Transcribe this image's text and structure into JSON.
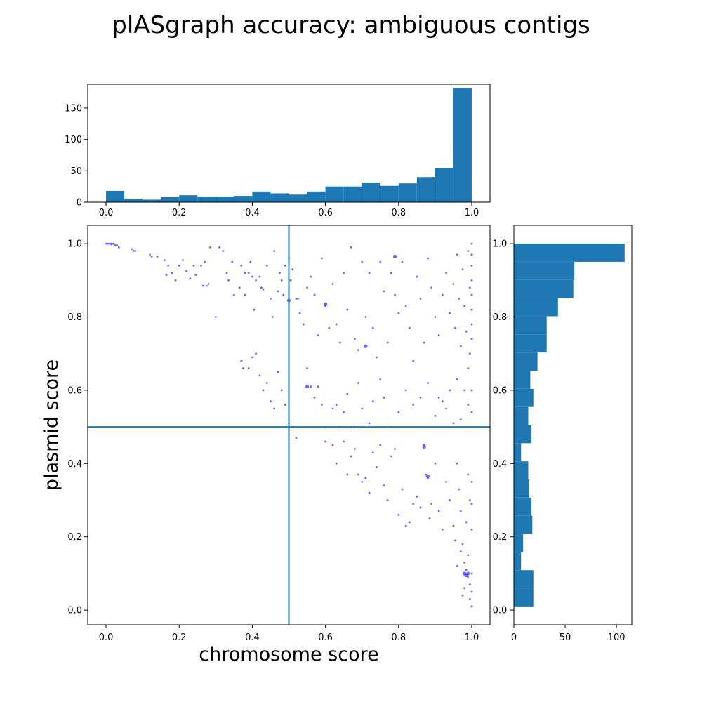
{
  "title": "plASgraph accuracy: ambiguous contigs",
  "chart_data": [
    {
      "type": "bar",
      "role": "histogram of chromosome score",
      "xlim": [
        -0.05,
        1.05
      ],
      "ylim": [
        0,
        188
      ],
      "x_ticks": [
        0.0,
        0.2,
        0.4,
        0.6,
        0.8,
        1.0
      ],
      "x_tick_labels": [
        "0.0",
        "0.2",
        "0.4",
        "0.6",
        "0.8",
        "1.0"
      ],
      "y_ticks": [
        0,
        50,
        100,
        150
      ],
      "y_tick_labels": [
        "0",
        "50",
        "100",
        "150"
      ],
      "bin_edges": [
        0.0,
        0.05,
        0.1,
        0.15,
        0.2,
        0.25,
        0.3,
        0.35,
        0.4,
        0.45,
        0.5,
        0.55,
        0.6,
        0.65,
        0.7,
        0.75,
        0.8,
        0.85,
        0.9,
        0.95,
        1.0
      ],
      "values": [
        18,
        5,
        4,
        8,
        11,
        9,
        9,
        10,
        17,
        14,
        12,
        17,
        25,
        25,
        31,
        26,
        30,
        40,
        54,
        182
      ],
      "color": "#1f77b4"
    },
    {
      "type": "scatter",
      "xlabel": "chromosome score",
      "ylabel": "plasmid score",
      "xlim": [
        -0.05,
        1.05
      ],
      "ylim": [
        -0.04,
        1.05
      ],
      "x_ticks": [
        0.0,
        0.2,
        0.4,
        0.6,
        0.8,
        1.0
      ],
      "x_tick_labels": [
        "0.0",
        "0.2",
        "0.4",
        "0.6",
        "0.8",
        "1.0"
      ],
      "y_ticks": [
        0.0,
        0.2,
        0.4,
        0.6,
        0.8,
        1.0
      ],
      "y_tick_labels": [
        "0.0",
        "0.2",
        "0.4",
        "0.6",
        "0.8",
        "1.0"
      ],
      "reference_lines": {
        "x": 0.5,
        "y": 0.5,
        "color": "#1f77b4"
      },
      "point_color": "#0000ff",
      "points": [
        [
          0.0,
          1.0
        ],
        [
          0.005,
          1.0
        ],
        [
          0.01,
          1.0
        ],
        [
          0.015,
          0.998
        ],
        [
          0.02,
          1.0
        ],
        [
          0.025,
          0.996
        ],
        [
          0.015,
          1.0
        ],
        [
          0.03,
          0.995
        ],
        [
          0.035,
          0.99
        ],
        [
          0.07,
          0.985
        ],
        [
          0.075,
          0.98
        ],
        [
          0.08,
          0.98
        ],
        [
          0.12,
          0.97
        ],
        [
          0.125,
          0.965
        ],
        [
          0.14,
          0.965
        ],
        [
          0.16,
          0.955
        ],
        [
          0.17,
          0.94
        ],
        [
          0.165,
          0.915
        ],
        [
          0.18,
          0.92
        ],
        [
          0.19,
          0.9
        ],
        [
          0.2,
          0.94
        ],
        [
          0.21,
          0.955
        ],
        [
          0.22,
          0.925
        ],
        [
          0.23,
          0.905
        ],
        [
          0.24,
          0.94
        ],
        [
          0.245,
          0.915
        ],
        [
          0.26,
          0.94
        ],
        [
          0.265,
          0.885
        ],
        [
          0.27,
          0.95
        ],
        [
          0.275,
          0.885
        ],
        [
          0.28,
          0.89
        ],
        [
          0.285,
          0.99
        ],
        [
          0.3,
          0.8
        ],
        [
          0.31,
          0.99
        ],
        [
          0.32,
          0.98
        ],
        [
          0.33,
          0.92
        ],
        [
          0.335,
          0.9
        ],
        [
          0.345,
          0.95
        ],
        [
          0.35,
          0.86
        ],
        [
          0.365,
          0.88
        ],
        [
          0.37,
          0.94
        ],
        [
          0.38,
          0.92
        ],
        [
          0.38,
          0.86
        ],
        [
          0.39,
          0.92
        ],
        [
          0.395,
          0.95
        ],
        [
          0.4,
          0.91
        ],
        [
          0.405,
          0.82
        ],
        [
          0.41,
          0.9
        ],
        [
          0.42,
          0.91
        ],
        [
          0.425,
          0.88
        ],
        [
          0.43,
          0.875
        ],
        [
          0.44,
          0.94
        ],
        [
          0.45,
          0.85
        ],
        [
          0.455,
          0.8
        ],
        [
          0.46,
          0.98
        ],
        [
          0.47,
          0.87
        ],
        [
          0.475,
          0.92
        ],
        [
          0.48,
          0.9
        ],
        [
          0.485,
          0.86
        ],
        [
          0.49,
          0.94
        ],
        [
          0.37,
          0.68
        ],
        [
          0.375,
          0.66
        ],
        [
          0.39,
          0.66
        ],
        [
          0.4,
          0.69
        ],
        [
          0.41,
          0.7
        ],
        [
          0.42,
          0.64
        ],
        [
          0.43,
          0.6
        ],
        [
          0.44,
          0.62
        ],
        [
          0.45,
          0.57
        ],
        [
          0.46,
          0.55
        ],
        [
          0.47,
          0.65
        ],
        [
          0.48,
          0.6
        ],
        [
          0.49,
          0.56
        ],
        [
          0.5,
          0.96
        ],
        [
          0.505,
          0.9
        ],
        [
          0.51,
          0.93
        ],
        [
          0.52,
          0.85
        ],
        [
          0.525,
          0.85
        ],
        [
          0.53,
          0.81
        ],
        [
          0.54,
          0.78
        ],
        [
          0.55,
          0.88
        ],
        [
          0.56,
          0.91
        ],
        [
          0.57,
          0.86
        ],
        [
          0.58,
          0.75
        ],
        [
          0.59,
          0.96
        ],
        [
          0.6,
          0.83
        ],
        [
          0.61,
          0.77
        ],
        [
          0.62,
          0.89
        ],
        [
          0.63,
          0.78
        ],
        [
          0.64,
          0.73
        ],
        [
          0.65,
          0.92
        ],
        [
          0.66,
          0.82
        ],
        [
          0.67,
          0.99
        ],
        [
          0.68,
          0.74
        ],
        [
          0.69,
          0.71
        ],
        [
          0.7,
          0.95
        ],
        [
          0.71,
          0.8
        ],
        [
          0.72,
          0.92
        ],
        [
          0.73,
          0.77
        ],
        [
          0.74,
          0.69
        ],
        [
          0.75,
          0.95
        ],
        [
          0.76,
          0.87
        ],
        [
          0.77,
          0.73
        ],
        [
          0.78,
          0.92
        ],
        [
          0.79,
          0.86
        ],
        [
          0.8,
          0.81
        ],
        [
          0.81,
          0.95
        ],
        [
          0.82,
          0.83
        ],
        [
          0.83,
          0.77
        ],
        [
          0.84,
          0.68
        ],
        [
          0.85,
          0.91
        ],
        [
          0.86,
          0.85
        ],
        [
          0.87,
          0.73
        ],
        [
          0.88,
          0.96
        ],
        [
          0.89,
          0.88
        ],
        [
          0.9,
          0.8
        ],
        [
          0.91,
          0.75
        ],
        [
          0.92,
          0.86
        ],
        [
          0.93,
          0.92
        ],
        [
          0.94,
          0.81
        ],
        [
          0.95,
          0.89
        ],
        [
          0.955,
          0.77
        ],
        [
          0.96,
          0.97
        ],
        [
          0.965,
          0.85
        ],
        [
          0.97,
          0.72
        ],
        [
          0.975,
          0.93
        ],
        [
          0.98,
          0.83
        ],
        [
          0.985,
          0.76
        ],
        [
          0.99,
          0.98
        ],
        [
          0.995,
          0.88
        ],
        [
          1.0,
          1.0
        ],
        [
          1.0,
          0.97
        ],
        [
          1.0,
          0.94
        ],
        [
          1.0,
          0.9
        ],
        [
          1.0,
          0.86
        ],
        [
          1.0,
          0.82
        ],
        [
          1.0,
          0.78
        ],
        [
          1.0,
          0.74
        ],
        [
          0.995,
          0.7
        ],
        [
          0.99,
          0.66
        ],
        [
          0.5,
          0.51
        ],
        [
          0.51,
          0.5
        ],
        [
          0.52,
          0.47
        ],
        [
          0.55,
          0.66
        ],
        [
          0.56,
          0.61
        ],
        [
          0.57,
          0.58
        ],
        [
          0.58,
          0.61
        ],
        [
          0.59,
          0.56
        ],
        [
          0.6,
          0.5
        ],
        [
          0.62,
          0.55
        ],
        [
          0.63,
          0.56
        ],
        [
          0.64,
          0.5
        ],
        [
          0.65,
          0.54
        ],
        [
          0.66,
          0.59
        ],
        [
          0.67,
          0.5
        ],
        [
          0.68,
          0.5
        ],
        [
          0.69,
          0.62
        ],
        [
          0.7,
          0.55
        ],
        [
          0.72,
          0.51
        ],
        [
          0.73,
          0.57
        ],
        [
          0.75,
          0.63
        ],
        [
          0.76,
          0.58
        ],
        [
          0.78,
          0.5
        ],
        [
          0.8,
          0.54
        ],
        [
          0.82,
          0.6
        ],
        [
          0.84,
          0.56
        ],
        [
          0.86,
          0.58
        ],
        [
          0.88,
          0.62
        ],
        [
          0.9,
          0.53
        ],
        [
          0.92,
          0.57
        ],
        [
          0.94,
          0.6
        ],
        [
          0.96,
          0.63
        ],
        [
          0.98,
          0.6
        ],
        [
          1.0,
          0.6
        ],
        [
          1.0,
          0.54
        ],
        [
          0.99,
          0.56
        ],
        [
          0.97,
          0.52
        ],
        [
          0.95,
          0.51
        ],
        [
          0.93,
          0.55
        ],
        [
          0.91,
          0.58
        ],
        [
          0.6,
          0.46
        ],
        [
          0.62,
          0.45
        ],
        [
          0.63,
          0.4
        ],
        [
          0.65,
          0.46
        ],
        [
          0.66,
          0.37
        ],
        [
          0.67,
          0.42
        ],
        [
          0.68,
          0.44
        ],
        [
          0.69,
          0.37
        ],
        [
          0.7,
          0.35
        ],
        [
          0.71,
          0.36
        ],
        [
          0.72,
          0.32
        ],
        [
          0.73,
          0.43
        ],
        [
          0.74,
          0.39
        ],
        [
          0.75,
          0.45
        ],
        [
          0.76,
          0.34
        ],
        [
          0.77,
          0.3
        ],
        [
          0.78,
          0.42
        ],
        [
          0.79,
          0.44
        ],
        [
          0.8,
          0.26
        ],
        [
          0.81,
          0.33
        ],
        [
          0.82,
          0.23
        ],
        [
          0.83,
          0.24
        ],
        [
          0.84,
          0.29
        ],
        [
          0.85,
          0.31
        ],
        [
          0.86,
          0.28
        ],
        [
          0.87,
          0.45
        ],
        [
          0.875,
          0.37
        ],
        [
          0.88,
          0.36
        ],
        [
          0.885,
          0.25
        ],
        [
          0.89,
          0.29
        ],
        [
          0.9,
          0.4
        ],
        [
          0.91,
          0.27
        ],
        [
          0.92,
          0.22
        ],
        [
          0.93,
          0.35
        ],
        [
          0.94,
          0.3
        ],
        [
          0.95,
          0.23
        ],
        [
          0.955,
          0.19
        ],
        [
          0.96,
          0.4
        ],
        [
          0.965,
          0.33
        ],
        [
          0.97,
          0.27
        ],
        [
          0.975,
          0.18
        ],
        [
          0.98,
          0.13
        ],
        [
          0.985,
          0.24
        ],
        [
          0.99,
          0.37
        ],
        [
          0.995,
          0.3
        ],
        [
          1.0,
          0.29
        ],
        [
          1.0,
          0.22
        ],
        [
          1.0,
          0.35
        ],
        [
          0.99,
          0.09
        ],
        [
          0.995,
          0.07
        ],
        [
          1.0,
          0.1
        ],
        [
          1.0,
          0.05
        ],
        [
          0.995,
          0.03
        ],
        [
          1.0,
          0.01
        ],
        [
          0.99,
          0.15
        ],
        [
          0.985,
          0.11
        ],
        [
          0.98,
          0.06
        ],
        [
          0.975,
          0.04
        ],
        [
          0.97,
          0.16
        ],
        [
          0.96,
          0.12
        ]
      ],
      "large_points": [
        [
          0.5,
          0.845
        ],
        [
          0.6,
          0.835
        ],
        [
          0.79,
          0.965
        ],
        [
          0.87,
          0.445
        ],
        [
          0.88,
          0.365
        ],
        [
          0.71,
          0.72
        ],
        [
          0.55,
          0.61
        ],
        [
          0.98,
          0.1
        ],
        [
          0.99,
          0.1
        ],
        [
          0.985,
          0.095
        ]
      ]
    },
    {
      "type": "bar",
      "role": "histogram of plasmid score",
      "orientation": "horizontal",
      "xlim": [
        0,
        115
      ],
      "ylim": [
        -0.04,
        1.05
      ],
      "x_ticks": [
        0,
        50,
        100
      ],
      "x_tick_labels": [
        "0",
        "50",
        "100"
      ],
      "y_ticks": [
        0.0,
        0.2,
        0.4,
        0.6,
        0.8,
        1.0
      ],
      "y_tick_labels": [
        "0.0",
        "0.2",
        "0.4",
        "0.6",
        "0.8",
        "1.0"
      ],
      "bin_edges": [
        0.01,
        0.0595,
        0.109,
        0.1585,
        0.208,
        0.2575,
        0.307,
        0.3565,
        0.406,
        0.4555,
        0.505,
        0.5545,
        0.604,
        0.6535,
        0.703,
        0.7525,
        0.802,
        0.8515,
        0.901,
        0.9505,
        1.0
      ],
      "values": [
        19,
        19,
        7,
        9,
        18,
        17,
        15,
        14,
        7,
        17,
        14,
        19,
        16,
        23,
        32,
        32,
        43,
        58,
        59,
        108
      ],
      "color": "#1f77b4"
    }
  ]
}
